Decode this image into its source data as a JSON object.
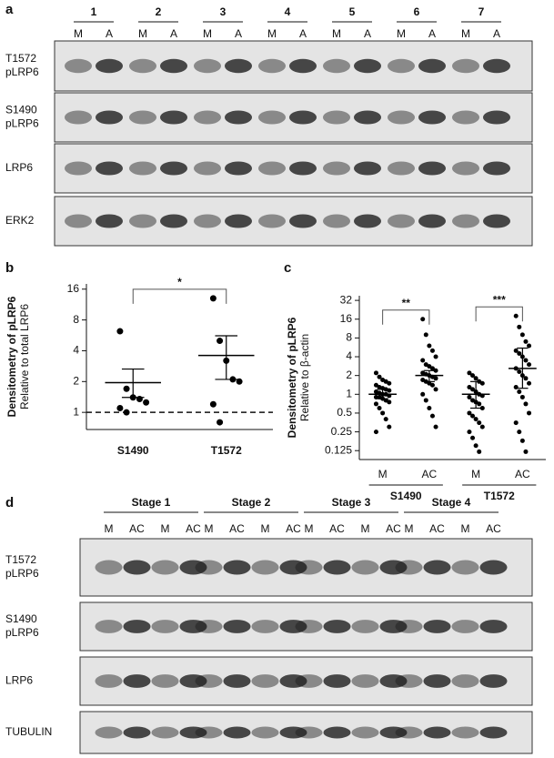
{
  "panels": {
    "a": {
      "label": "a",
      "groups": [
        {
          "label": "1",
          "lanes": [
            "M",
            "A"
          ]
        },
        {
          "label": "2",
          "lanes": [
            "M",
            "A"
          ]
        },
        {
          "label": "3",
          "lanes": [
            "M",
            "A"
          ]
        },
        {
          "label": "4",
          "lanes": [
            "M",
            "A"
          ]
        },
        {
          "label": "5",
          "lanes": [
            "M",
            "A"
          ]
        },
        {
          "label": "6",
          "lanes": [
            "M",
            "A"
          ]
        },
        {
          "label": "7",
          "lanes": [
            "M",
            "A"
          ]
        }
      ],
      "blots": [
        {
          "label": [
            "T1572",
            "pLRP6"
          ]
        },
        {
          "label": [
            "S1490",
            "pLRP6"
          ]
        },
        {
          "label": [
            "LRP6"
          ]
        },
        {
          "label": [
            "ERK2"
          ]
        }
      ]
    },
    "d": {
      "label": "d",
      "stages": [
        {
          "label": "Stage 1",
          "lanes": [
            "M",
            "AC",
            "M",
            "AC"
          ]
        },
        {
          "label": "Stage 2",
          "lanes": [
            "M",
            "AC",
            "M",
            "AC"
          ]
        },
        {
          "label": "Stage 3",
          "lanes": [
            "M",
            "AC",
            "M",
            "AC"
          ]
        },
        {
          "label": "Stage 4",
          "lanes": [
            "M",
            "AC",
            "M",
            "AC"
          ]
        }
      ],
      "blots": [
        {
          "label": [
            "T1572",
            "pLRP6"
          ]
        },
        {
          "label": [
            "S1490",
            "pLRP6"
          ]
        },
        {
          "label": [
            "LRP6"
          ]
        },
        {
          "label": [
            "TUBULIN"
          ]
        }
      ]
    }
  },
  "chart_data": [
    {
      "type": "scatter",
      "panel": "b",
      "ylabel": "Densitometry of pLRP6",
      "ysublabel": "Relative to total LRP6",
      "categories": [
        "S1490",
        "T1572"
      ],
      "points": [
        [
          6.2,
          1.7,
          1.4,
          1.35,
          1.25,
          1.1,
          1.0
        ],
        [
          13,
          5,
          3.2,
          2.1,
          2.0,
          1.2,
          0.8
        ]
      ],
      "mean": [
        1.95,
        3.6
      ],
      "error_low": [
        1.4,
        2.1
      ],
      "error_high": [
        2.65,
        5.6
      ],
      "ylim": [
        0.68,
        18
      ],
      "yticks": [
        1,
        2,
        4,
        8,
        16
      ],
      "log_scale": true,
      "reference_line": 1,
      "significance": [
        "*"
      ],
      "color": "#000000"
    },
    {
      "type": "scatter",
      "panel": "c",
      "ylabel": "Densitometry of pLRP6",
      "ysublabel": "Relative to β-actin",
      "categories": [
        "M",
        "AC",
        "M",
        "AC"
      ],
      "groups": [
        "S1490",
        "T1572"
      ],
      "points": [
        [
          2.2,
          1.9,
          1.7,
          1.6,
          1.5,
          1.4,
          1.3,
          1.25,
          1.2,
          1.15,
          1.1,
          1.05,
          1.0,
          1.0,
          0.95,
          0.9,
          0.9,
          0.85,
          0.8,
          0.75,
          0.7,
          0.6,
          0.5,
          0.4,
          0.3,
          0.25
        ],
        [
          16,
          9,
          6,
          5,
          4,
          3.5,
          3,
          2.8,
          2.6,
          2.4,
          2.2,
          2.1,
          2.0,
          1.9,
          1.8,
          1.7,
          1.6,
          1.5,
          1.4,
          1.2,
          1.0,
          0.8,
          0.6,
          0.45,
          0.3
        ],
        [
          2.2,
          2,
          1.8,
          1.6,
          1.5,
          1.3,
          1.2,
          1.1,
          1.0,
          0.95,
          0.9,
          0.8,
          0.75,
          0.7,
          0.6,
          0.5,
          0.45,
          0.4,
          0.35,
          0.3,
          0.25,
          0.2,
          0.15,
          0.12
        ],
        [
          18,
          12,
          9,
          7,
          6,
          5,
          4.5,
          4,
          3.5,
          3,
          2.6,
          2.3,
          2,
          1.8,
          1.5,
          1.3,
          1.1,
          0.9,
          0.7,
          0.5,
          0.35,
          0.25,
          0.18,
          0.12
        ]
      ],
      "mean": [
        1.0,
        2.0,
        1.0,
        2.6
      ],
      "error_low": [
        0.85,
        1.6,
        0.6,
        1.25
      ],
      "error_high": [
        1.2,
        2.4,
        1.6,
        5.5
      ],
      "ylim": [
        0.09,
        38
      ],
      "yticks": [
        0.125,
        0.25,
        0.5,
        1,
        2,
        4,
        8,
        16,
        32
      ],
      "log_scale": true,
      "significance": [
        "**",
        "***"
      ],
      "color": "#000000"
    }
  ]
}
